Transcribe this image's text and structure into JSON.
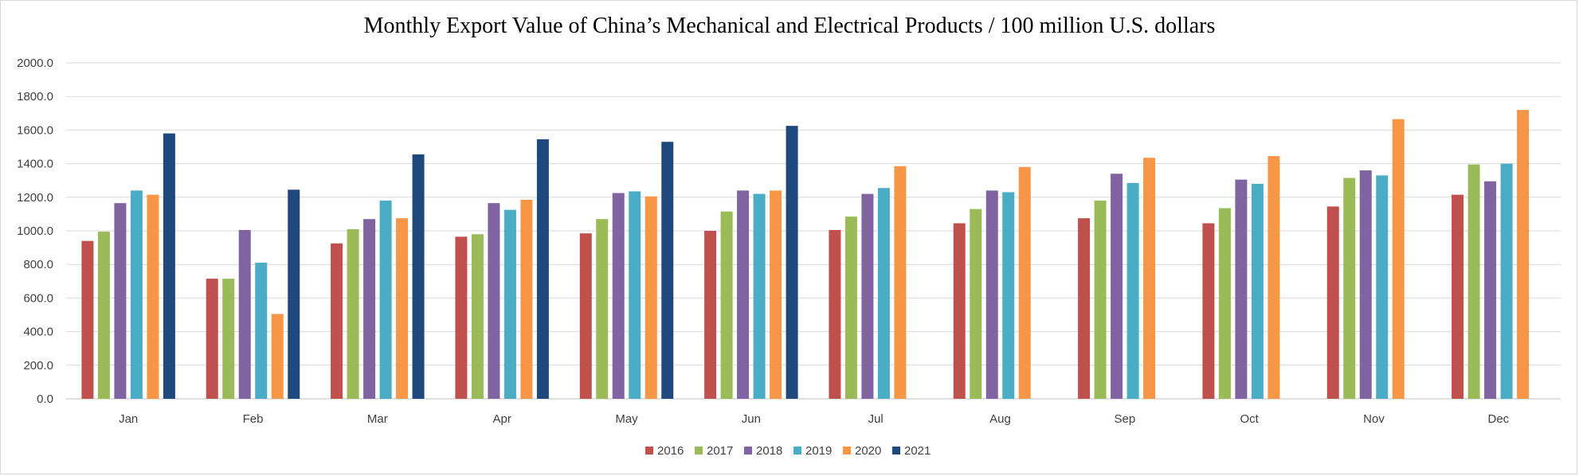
{
  "chart_data": {
    "type": "bar",
    "title": "Monthly Export Value of China’s Mechanical and Electrical Products / 100 million U.S. dollars",
    "xlabel": "",
    "ylabel": "",
    "ylim": [
      0,
      2000
    ],
    "yticks": [
      "0.0",
      "200.0",
      "400.0",
      "600.0",
      "800.0",
      "1000.0",
      "1200.0",
      "1400.0",
      "1600.0",
      "1800.0",
      "2000.0"
    ],
    "grid": true,
    "legend_position": "bottom",
    "categories": [
      "Jan",
      "Feb",
      "Mar",
      "Apr",
      "May",
      "Jun",
      "Jul",
      "Aug",
      "Sep",
      "Oct",
      "Nov",
      "Dec"
    ],
    "series": [
      {
        "name": "2016",
        "color": "#C0504D",
        "values": [
          940,
          715,
          925,
          965,
          985,
          1000,
          1005,
          1045,
          1075,
          1045,
          1145,
          1215
        ]
      },
      {
        "name": "2017",
        "color": "#9BBB59",
        "values": [
          995,
          715,
          1010,
          980,
          1070,
          1115,
          1085,
          1130,
          1180,
          1135,
          1315,
          1395
        ]
      },
      {
        "name": "2018",
        "color": "#8064A2",
        "values": [
          1165,
          1005,
          1070,
          1165,
          1225,
          1240,
          1220,
          1240,
          1340,
          1305,
          1360,
          1295
        ]
      },
      {
        "name": "2019",
        "color": "#4BACC6",
        "values": [
          1240,
          810,
          1180,
          1125,
          1235,
          1220,
          1255,
          1230,
          1285,
          1280,
          1330,
          1400
        ]
      },
      {
        "name": "2020",
        "color": "#F79646",
        "values": [
          1215,
          505,
          1075,
          1185,
          1205,
          1240,
          1385,
          1380,
          1435,
          1445,
          1665,
          1720
        ]
      },
      {
        "name": "2021",
        "color": "#1F497D",
        "values": [
          1580,
          1245,
          1455,
          1545,
          1530,
          1625,
          null,
          null,
          null,
          null,
          null,
          null
        ]
      }
    ]
  }
}
